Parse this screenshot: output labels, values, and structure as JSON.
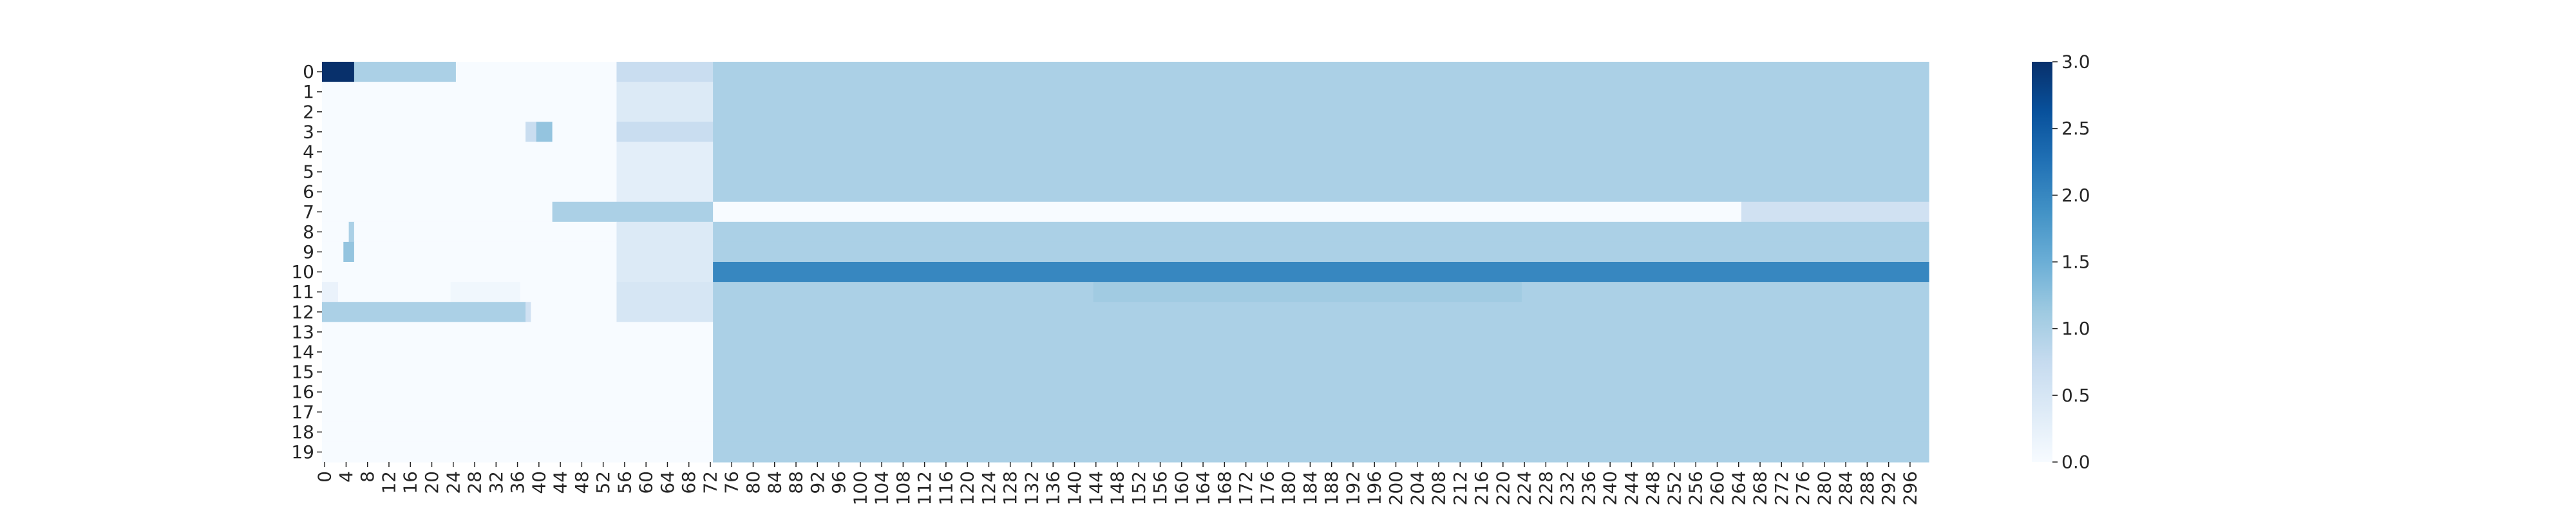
{
  "chart_data": {
    "type": "heatmap",
    "title": "",
    "xlabel": "",
    "ylabel": "",
    "n_rows": 20,
    "n_cols": 300,
    "y_tick_labels": [
      "0",
      "1",
      "2",
      "3",
      "4",
      "5",
      "6",
      "7",
      "8",
      "9",
      "10",
      "11",
      "12",
      "13",
      "14",
      "15",
      "16",
      "17",
      "18",
      "19"
    ],
    "x_tick_step": 4,
    "x_tick_labels": [
      "0",
      "4",
      "8",
      "12",
      "16",
      "20",
      "24",
      "28",
      "32",
      "36",
      "40",
      "44",
      "48",
      "52",
      "56",
      "60",
      "64",
      "68",
      "72",
      "76",
      "80",
      "84",
      "88",
      "92",
      "96",
      "100",
      "104",
      "108",
      "112",
      "116",
      "120",
      "124",
      "128",
      "132",
      "136",
      "140",
      "144",
      "148",
      "152",
      "156",
      "160",
      "164",
      "168",
      "172",
      "176",
      "180",
      "184",
      "188",
      "192",
      "196",
      "200",
      "204",
      "208",
      "212",
      "216",
      "220",
      "224",
      "228",
      "232",
      "236",
      "240",
      "244",
      "248",
      "252",
      "256",
      "260",
      "264",
      "268",
      "272",
      "276",
      "280",
      "284",
      "288",
      "292",
      "296"
    ],
    "colorbar": {
      "min": 0.0,
      "max": 3.0,
      "tick_labels": [
        "0.0",
        "0.5",
        "1.0",
        "1.5",
        "2.0",
        "2.5",
        "3.0"
      ],
      "colormap": "Blues"
    },
    "colormap_stops": [
      "#f7fbff",
      "#deebf7",
      "#c6dbef",
      "#9ecae1",
      "#6baed6",
      "#4292c6",
      "#2171b5",
      "#08519c",
      "#08306b"
    ],
    "default_value": 1.0,
    "cells": [
      {
        "row": 0,
        "cols": [
          0,
          72
        ],
        "value": 0.0
      },
      {
        "row": 0,
        "cols": [
          0,
          5
        ],
        "value": 3.0
      },
      {
        "row": 0,
        "cols": [
          6,
          24
        ],
        "value": 1.0
      },
      {
        "row": 0,
        "cols": [
          55,
          72
        ],
        "value": 0.7
      },
      {
        "row": 1,
        "cols": [
          0,
          72
        ],
        "value": 0.0
      },
      {
        "row": 1,
        "cols": [
          55,
          72
        ],
        "value": 0.4
      },
      {
        "row": 2,
        "cols": [
          0,
          72
        ],
        "value": 0.0
      },
      {
        "row": 2,
        "cols": [
          55,
          72
        ],
        "value": 0.4
      },
      {
        "row": 3,
        "cols": [
          0,
          72
        ],
        "value": 0.0
      },
      {
        "row": 3,
        "cols": [
          38,
          39
        ],
        "value": 0.7
      },
      {
        "row": 3,
        "cols": [
          40,
          42
        ],
        "value": 1.2
      },
      {
        "row": 3,
        "cols": [
          55,
          72
        ],
        "value": 0.7
      },
      {
        "row": 4,
        "cols": [
          0,
          72
        ],
        "value": 0.0
      },
      {
        "row": 4,
        "cols": [
          55,
          72
        ],
        "value": 0.3
      },
      {
        "row": 5,
        "cols": [
          0,
          72
        ],
        "value": 0.0
      },
      {
        "row": 5,
        "cols": [
          55,
          72
        ],
        "value": 0.3
      },
      {
        "row": 6,
        "cols": [
          0,
          72
        ],
        "value": 0.0
      },
      {
        "row": 6,
        "cols": [
          55,
          72
        ],
        "value": 0.3
      },
      {
        "row": 7,
        "cols": [
          0,
          42
        ],
        "value": 0.0
      },
      {
        "row": 7,
        "cols": [
          43,
          72
        ],
        "value": 1.0
      },
      {
        "row": 7,
        "cols": [
          73,
          264
        ],
        "value": 0.0
      },
      {
        "row": 7,
        "cols": [
          265,
          299
        ],
        "value": 0.6
      },
      {
        "row": 8,
        "cols": [
          0,
          72
        ],
        "value": 0.0
      },
      {
        "row": 8,
        "cols": [
          5,
          5
        ],
        "value": 1.0
      },
      {
        "row": 8,
        "cols": [
          55,
          72
        ],
        "value": 0.4
      },
      {
        "row": 9,
        "cols": [
          0,
          72
        ],
        "value": 0.0
      },
      {
        "row": 9,
        "cols": [
          4,
          5
        ],
        "value": 1.2
      },
      {
        "row": 9,
        "cols": [
          55,
          72
        ],
        "value": 0.4
      },
      {
        "row": 10,
        "cols": [
          0,
          72
        ],
        "value": 0.0
      },
      {
        "row": 10,
        "cols": [
          55,
          72
        ],
        "value": 0.4
      },
      {
        "row": 10,
        "cols": [
          73,
          299
        ],
        "value": 2.0
      },
      {
        "row": 11,
        "cols": [
          0,
          72
        ],
        "value": 0.0
      },
      {
        "row": 11,
        "cols": [
          0,
          2
        ],
        "value": 0.2
      },
      {
        "row": 11,
        "cols": [
          24,
          36
        ],
        "value": 0.1
      },
      {
        "row": 11,
        "cols": [
          55,
          72
        ],
        "value": 0.5
      },
      {
        "row": 11,
        "cols": [
          144,
          223
        ],
        "value": 1.1
      },
      {
        "row": 12,
        "cols": [
          0,
          72
        ],
        "value": 0.0
      },
      {
        "row": 12,
        "cols": [
          0,
          37
        ],
        "value": 1.0
      },
      {
        "row": 12,
        "cols": [
          38,
          38
        ],
        "value": 0.6
      },
      {
        "row": 12,
        "cols": [
          55,
          72
        ],
        "value": 0.5
      },
      {
        "row": 13,
        "cols": [
          0,
          72
        ],
        "value": 0.0
      },
      {
        "row": 14,
        "cols": [
          0,
          72
        ],
        "value": 0.0
      },
      {
        "row": 15,
        "cols": [
          0,
          72
        ],
        "value": 0.0
      },
      {
        "row": 16,
        "cols": [
          0,
          72
        ],
        "value": 0.0
      },
      {
        "row": 17,
        "cols": [
          0,
          72
        ],
        "value": 0.0
      },
      {
        "row": 18,
        "cols": [
          0,
          72
        ],
        "value": 0.0
      },
      {
        "row": 19,
        "cols": [
          0,
          72
        ],
        "value": 0.0
      }
    ]
  }
}
